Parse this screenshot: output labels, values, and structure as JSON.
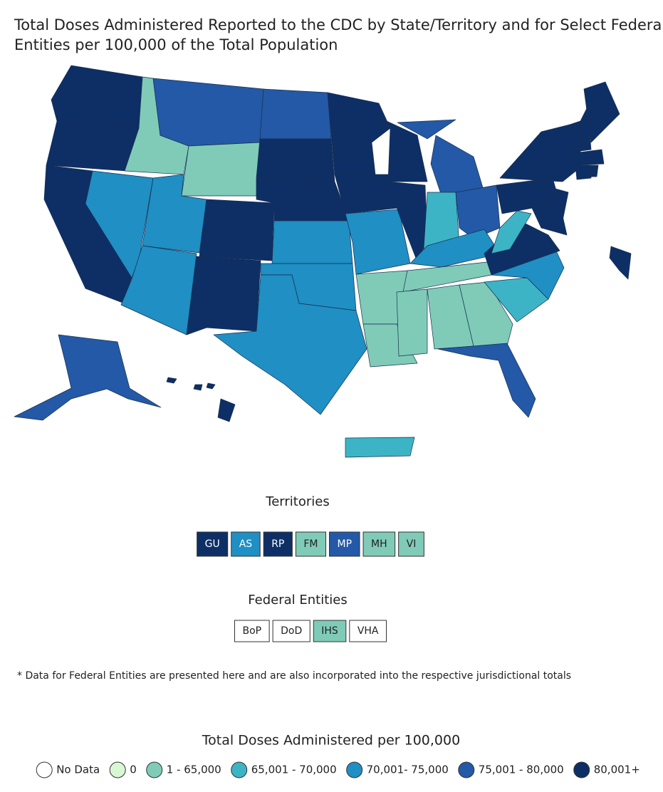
{
  "title_lines": [
    "Total Doses Administered Reported to the CDC by State/Territory and for Select Federal",
    "Entities per 100,000 of the Total Population"
  ],
  "map": {
    "region_levels": [
      6,
      6,
      6,
      2,
      4,
      5,
      2,
      4,
      4,
      6,
      6,
      5,
      6,
      6,
      4,
      4,
      4,
      6,
      6,
      4,
      2,
      2,
      6,
      6,
      5,
      3,
      5,
      4,
      2,
      2,
      2,
      2,
      5,
      3,
      4,
      6,
      3,
      6,
      6,
      6,
      6,
      6,
      6,
      6,
      6,
      6,
      6,
      5,
      6,
      6,
      6,
      3,
      6
    ]
  },
  "territories": {
    "title": "Territories",
    "items": [
      {
        "label": "GU",
        "level": 6
      },
      {
        "label": "AS",
        "level": 4
      },
      {
        "label": "RP",
        "level": 6
      },
      {
        "label": "FM",
        "level": 2
      },
      {
        "label": "MP",
        "level": 5
      },
      {
        "label": "MH",
        "level": 2
      },
      {
        "label": "VI",
        "level": 2
      }
    ]
  },
  "federal_entities": {
    "title": "Federal Entities",
    "items": [
      {
        "label": "BoP",
        "level": 0
      },
      {
        "label": "DoD",
        "level": 0
      },
      {
        "label": "IHS",
        "level": 2
      },
      {
        "label": "VHA",
        "level": 0
      }
    ]
  },
  "footnote": "* Data for Federal Entities are presented here and are also incorporated into the respective jurisdictional totals",
  "legend": {
    "title": "Total Doses Administered per 100,000",
    "items": [
      {
        "label": "No Data",
        "color": "#ffffff"
      },
      {
        "label": "0",
        "color": "#d9f7d4"
      },
      {
        "label": "1 - 65,000",
        "color": "#7fcbb8"
      },
      {
        "label": "65,001 - 70,000",
        "color": "#3db4c5"
      },
      {
        "label": "70,001- 75,000",
        "color": "#1f8fc4"
      },
      {
        "label": "75,001 - 80,000",
        "color": "#2359a6"
      },
      {
        "label": "80,001+",
        "color": "#0d2f66"
      }
    ]
  }
}
